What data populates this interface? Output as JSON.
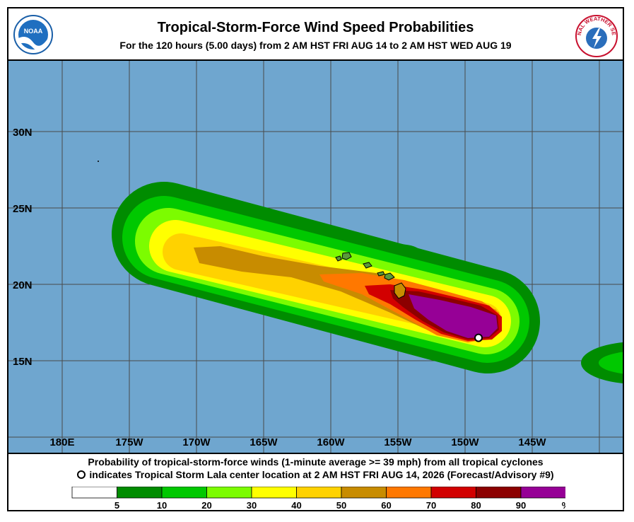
{
  "header": {
    "title": "Tropical-Storm-Force Wind Speed Probabilities",
    "subtitle": "For the 120 hours (5.00 days) from 2 AM HST FRI AUG 14 to 2 AM HST WED AUG 19",
    "left_logo": {
      "text": "NOAA",
      "icon": "noaa-logo"
    },
    "right_logo": {
      "text": "NATIONAL WEATHER SERVICE",
      "icon": "nws-logo"
    }
  },
  "map": {
    "ocean_color": "#6fa6cf",
    "grid_color": "#4a4a4a",
    "lon_labels": [
      "180E",
      "175W",
      "170W",
      "165W",
      "160W",
      "155W",
      "150W",
      "145W"
    ],
    "lat_labels": [
      "30N",
      "25N",
      "20N",
      "15N"
    ],
    "storm_center": {
      "lon": -149.0,
      "lat": 16.5
    }
  },
  "footer": {
    "caption1": "Probability of tropical-storm-force winds (1-minute average >= 39 mph) from all tropical cyclones",
    "caption2": "indicates Tropical Storm Lala center location at 2 AM HST FRI AUG 14, 2026 (Forecast/Advisory #9)"
  },
  "legend": {
    "labels": [
      "5",
      "10",
      "20",
      "30",
      "40",
      "50",
      "60",
      "70",
      "80",
      "90",
      "%"
    ],
    "colors": [
      "#ffffff",
      "#008c00",
      "#00c800",
      "#7cfc00",
      "#ffff00",
      "#ffd200",
      "#c88c00",
      "#ff7800",
      "#d20000",
      "#8c0000",
      "#960096"
    ]
  }
}
